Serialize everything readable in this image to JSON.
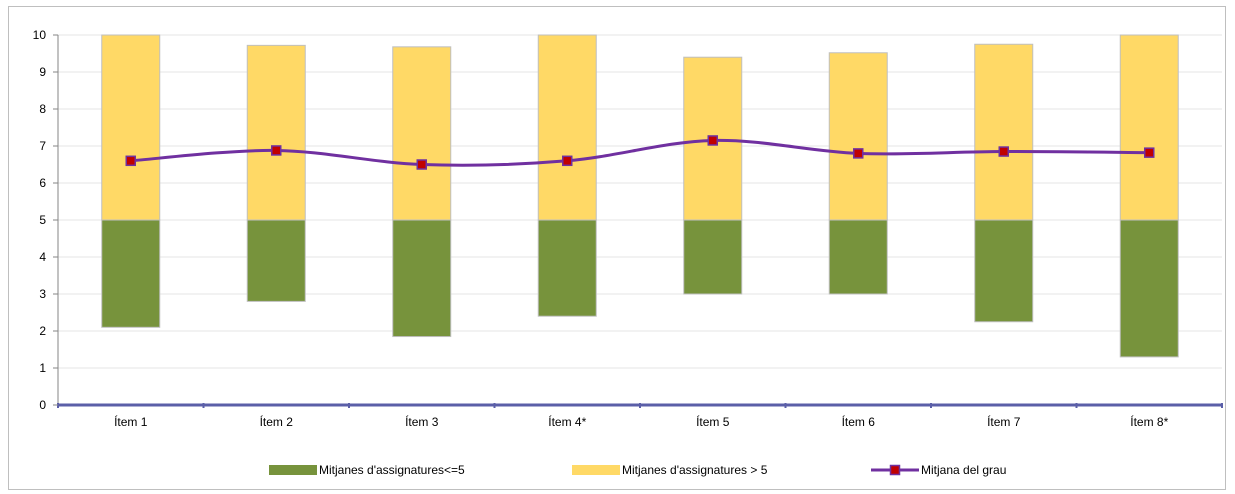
{
  "chart_data": {
    "type": "bar",
    "categories": [
      "Ítem 1",
      "Ítem 2",
      "Ítem 3",
      "Ítem 4*",
      "Ítem 5",
      "Ítem 6",
      "Ítem 7",
      "Ítem 8*"
    ],
    "ylim": [
      0,
      10
    ],
    "yticks": [
      "0",
      "1",
      "2",
      "3",
      "4",
      "5",
      "6",
      "7",
      "8",
      "9",
      "10"
    ],
    "grid": true,
    "legend_position": "bottom",
    "series": [
      {
        "name": "Mitjanes d'assignatures<=5",
        "kind": "floating-bar",
        "color": "#77933c",
        "low": [
          2.1,
          2.8,
          1.85,
          2.4,
          3.0,
          3.0,
          2.25,
          1.3
        ],
        "high": [
          5,
          5,
          5,
          5,
          5,
          5,
          5,
          5
        ]
      },
      {
        "name": "Mitjanes d'assignatures > 5",
        "kind": "floating-bar",
        "color": "#ffd966",
        "low": [
          5,
          5,
          5,
          5,
          5,
          5,
          5,
          5
        ],
        "high": [
          10.0,
          9.72,
          9.68,
          10.0,
          9.4,
          9.52,
          9.75,
          10.0
        ]
      },
      {
        "name": "Mitjana del grau",
        "kind": "line",
        "color": "#7030a0",
        "marker_color": "#c00000",
        "values": [
          6.6,
          6.88,
          6.5,
          6.6,
          7.15,
          6.8,
          6.85,
          6.82
        ]
      }
    ]
  }
}
